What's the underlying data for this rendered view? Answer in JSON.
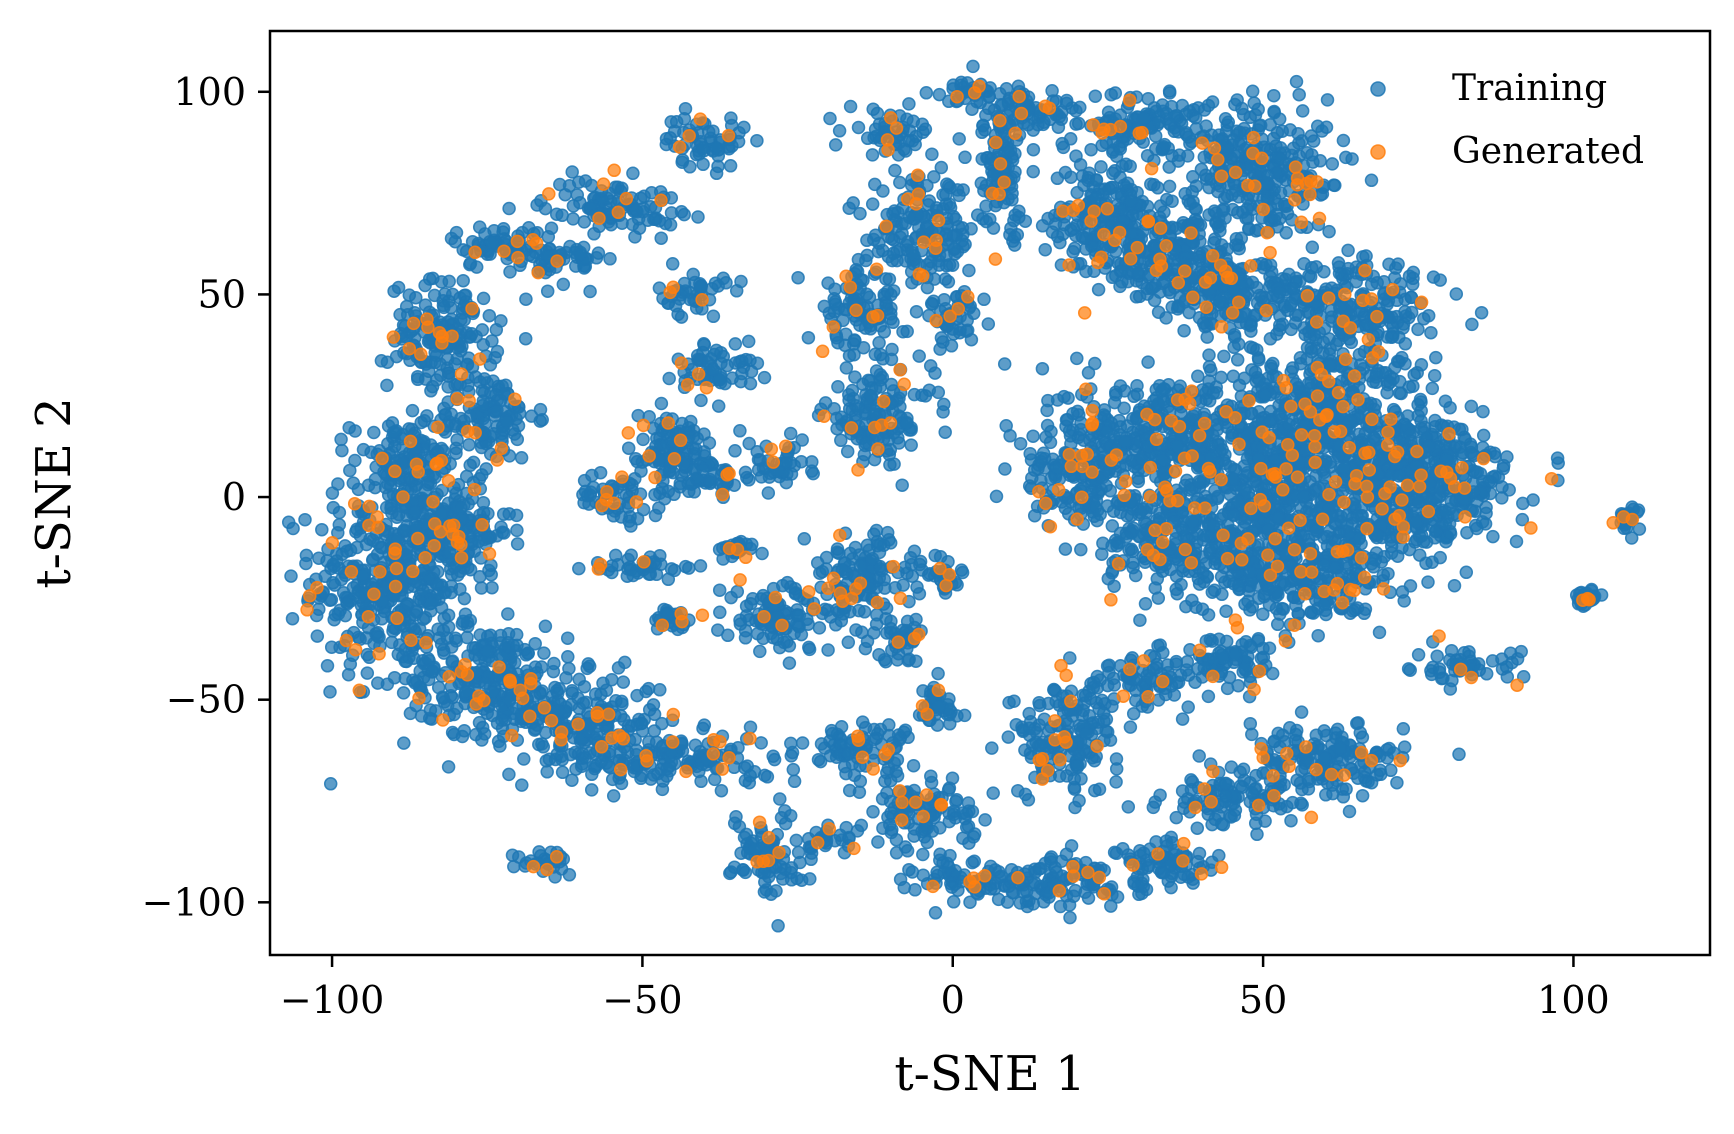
{
  "chart_data": {
    "type": "scatter",
    "title": "",
    "xlabel": "t-SNE 1",
    "ylabel": "t-SNE 2",
    "xlim": [
      -110,
      122
    ],
    "ylim": [
      -113,
      115
    ],
    "xticks": [
      -100,
      -50,
      0,
      50,
      100
    ],
    "yticks": [
      -100,
      -50,
      0,
      50,
      100
    ],
    "grid": false,
    "legend_position": "top-right",
    "series": [
      {
        "name": "Training",
        "color": "#1f77b4"
      },
      {
        "name": "Generated",
        "color": "#ff7f0e"
      }
    ],
    "clusters": [
      [
        -90,
        -20,
        12,
        22
      ],
      [
        -82,
        40,
        8,
        12
      ],
      [
        -88,
        8,
        8,
        10
      ],
      [
        -80,
        -8,
        8,
        10
      ],
      [
        -75,
        20,
        7,
        10
      ],
      [
        -75,
        -45,
        12,
        12
      ],
      [
        -60,
        -55,
        12,
        10
      ],
      [
        -45,
        -65,
        15,
        6
      ],
      [
        -40,
        88,
        6,
        6
      ],
      [
        -55,
        72,
        10,
        6
      ],
      [
        -72,
        62,
        8,
        5
      ],
      [
        -62,
        58,
        5,
        5
      ],
      [
        -42,
        50,
        5,
        5
      ],
      [
        -38,
        32,
        6,
        6
      ],
      [
        -45,
        10,
        8,
        10
      ],
      [
        -55,
        0,
        5,
        5
      ],
      [
        -50,
        -17,
        8,
        3
      ],
      [
        -35,
        -13,
        3,
        2
      ],
      [
        -45,
        -30,
        3,
        3
      ],
      [
        -38,
        5,
        4,
        4
      ],
      [
        -28,
        8,
        5,
        5
      ],
      [
        -28,
        -30,
        8,
        8
      ],
      [
        -15,
        -20,
        8,
        10
      ],
      [
        -8,
        -35,
        5,
        5
      ],
      [
        -3,
        -52,
        4,
        6
      ],
      [
        -12,
        20,
        8,
        10
      ],
      [
        -15,
        45,
        6,
        10
      ],
      [
        -5,
        65,
        8,
        12
      ],
      [
        -10,
        90,
        6,
        5
      ],
      [
        2,
        100,
        5,
        3
      ],
      [
        0,
        45,
        4,
        8
      ],
      [
        -5,
        -78,
        8,
        8
      ],
      [
        -15,
        -62,
        8,
        6
      ],
      [
        -30,
        -88,
        5,
        10
      ],
      [
        -65,
        -90,
        5,
        3
      ],
      [
        -20,
        -85,
        4,
        3
      ],
      [
        5,
        -95,
        10,
        5
      ],
      [
        20,
        -95,
        10,
        6
      ],
      [
        35,
        -90,
        8,
        5
      ],
      [
        45,
        -75,
        10,
        6
      ],
      [
        60,
        -65,
        12,
        8
      ],
      [
        18,
        -60,
        8,
        12
      ],
      [
        30,
        -45,
        8,
        6
      ],
      [
        45,
        -40,
        8,
        6
      ],
      [
        20,
        5,
        8,
        12
      ],
      [
        35,
        15,
        15,
        15
      ],
      [
        50,
        0,
        12,
        20
      ],
      [
        60,
        20,
        15,
        15
      ],
      [
        70,
        0,
        12,
        18
      ],
      [
        80,
        5,
        10,
        12
      ],
      [
        55,
        -20,
        15,
        10
      ],
      [
        35,
        -10,
        10,
        12
      ],
      [
        25,
        70,
        8,
        15
      ],
      [
        35,
        60,
        10,
        12
      ],
      [
        50,
        80,
        12,
        15
      ],
      [
        65,
        45,
        12,
        12
      ],
      [
        45,
        50,
        10,
        10
      ],
      [
        30,
        92,
        12,
        6
      ],
      [
        12,
        95,
        8,
        5
      ],
      [
        83,
        -42,
        8,
        4
      ],
      [
        102,
        -25,
        1.5,
        2
      ],
      [
        109,
        -6,
        2,
        3
      ],
      [
        -2,
        -20,
        3,
        5
      ],
      [
        8,
        80,
        4,
        15
      ]
    ]
  }
}
